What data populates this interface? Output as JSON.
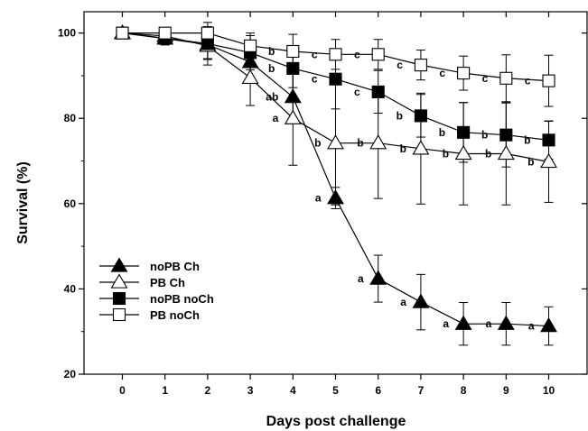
{
  "chart_data": {
    "type": "line",
    "title": "",
    "xlabel": "Days post challenge",
    "ylabel": "Survival (%)",
    "x": [
      0,
      1,
      2,
      3,
      4,
      5,
      6,
      7,
      8,
      9,
      10
    ],
    "xlim": [
      -0.9,
      10.9
    ],
    "ylim": [
      20,
      105
    ],
    "yticks": [
      20,
      40,
      60,
      80,
      100
    ],
    "grid": false,
    "legend_position": "bottom-left",
    "series": [
      {
        "name": "noPB Ch",
        "marker": "filled-triangle",
        "values": [
          100,
          98.7,
          97.3,
          93.2,
          85.0,
          61.3,
          42.4,
          36.9,
          31.8,
          31.8,
          31.3
        ],
        "error": [
          0,
          1.5,
          3.5,
          4.5,
          5.5,
          2.5,
          5.5,
          6.5,
          5.0,
          5.0,
          4.5
        ],
        "sig_labels": [
          "",
          "",
          "",
          "",
          "ab",
          "a",
          "a",
          "a",
          "a",
          "a",
          "a"
        ]
      },
      {
        "name": "PB Ch",
        "marker": "open-triangle",
        "values": [
          100,
          99.3,
          97.0,
          89.5,
          80.0,
          74.2,
          74.2,
          72.9,
          71.7,
          71.7,
          69.8
        ],
        "error": [
          0,
          1.5,
          4.5,
          6.5,
          11.0,
          14.5,
          13.0,
          13.0,
          12.0,
          12.0,
          9.5
        ],
        "sig_labels": [
          "",
          "",
          "",
          "",
          "a",
          "b",
          "b",
          "b",
          "b",
          "b",
          "b"
        ]
      },
      {
        "name": "noPB noCh",
        "marker": "filled-square",
        "values": [
          100,
          98.8,
          97.5,
          95.4,
          91.7,
          89.2,
          86.2,
          80.6,
          76.7,
          76.1,
          74.9
        ],
        "error": [
          0,
          1.5,
          3.5,
          4.0,
          4.5,
          7.0,
          5.0,
          5.0,
          7.0,
          7.5,
          4.5
        ],
        "sig_labels": [
          "",
          "",
          "",
          "",
          "b",
          "c",
          "c",
          "b",
          "b",
          "b",
          "b"
        ]
      },
      {
        "name": "PB noCh",
        "marker": "open-square",
        "values": [
          100,
          100,
          100,
          97.0,
          95.7,
          95.0,
          95.0,
          92.5,
          90.6,
          89.4,
          88.8
        ],
        "error": [
          0,
          1.0,
          2.5,
          3.0,
          4.0,
          3.5,
          3.5,
          3.5,
          4.0,
          5.5,
          6.0
        ],
        "sig_labels": [
          "",
          "",
          "",
          "",
          "b",
          "c",
          "c",
          "c",
          "c",
          "c",
          "c"
        ]
      }
    ]
  }
}
